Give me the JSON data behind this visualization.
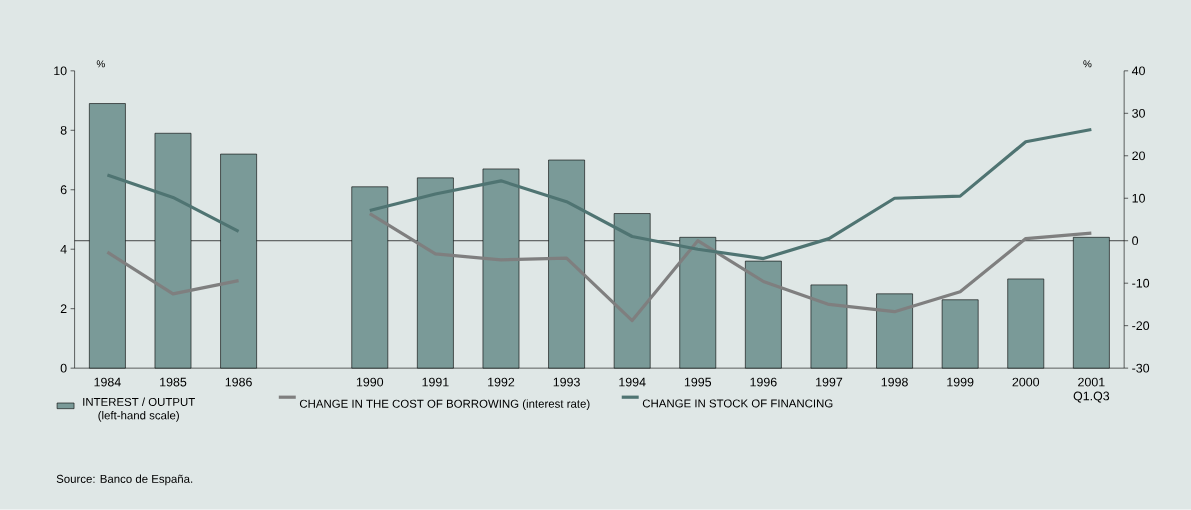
{
  "chart_data": {
    "type": "bar",
    "categories": [
      "1984",
      "1985",
      "1986",
      null,
      "1990",
      "1991",
      "1992",
      "1993",
      "1994",
      "1995",
      "1996",
      "1997",
      "1998",
      "1999",
      "2000",
      "2001 Q1.Q3"
    ],
    "series": [
      {
        "name": "INTEREST / OUTPUT (left-hand scale)",
        "color": "#7a9a98",
        "values": [
          8.9,
          7.9,
          7.2,
          null,
          6.1,
          6.4,
          6.7,
          7.0,
          5.2,
          4.4,
          3.6,
          2.8,
          2.5,
          2.3,
          3.0,
          4.4
        ]
      },
      {
        "name": "CHANGE IN THE COST OF BORROWING (interest rate)",
        "type": "line",
        "axis": "y2",
        "color": "#7f7f7f",
        "values": [
          -2.7,
          -12.5,
          -9.4,
          null,
          6.4,
          -3.1,
          -4.5,
          -4.1,
          -18.8,
          0,
          -9.6,
          -15,
          -16.7,
          -12,
          0.5,
          1.8
        ]
      },
      {
        "name": "CHANGE IN STOCK OF FINANCING",
        "type": "line",
        "axis": "y2",
        "color": "#4f7472",
        "values": [
          15.5,
          10.2,
          2.2,
          null,
          7.1,
          11,
          14.1,
          9.2,
          1,
          -2,
          -4.2,
          0.5,
          10,
          10.5,
          23.3,
          26.2
        ]
      }
    ],
    "ylabel": "%",
    "y2label": "%",
    "ylim": [
      0,
      10
    ],
    "yticks": [
      0,
      2,
      4,
      6,
      8,
      10
    ],
    "y2lim": [
      -30,
      40
    ],
    "y2ticks": [
      -30,
      -20,
      -10,
      0,
      10,
      20,
      30,
      40
    ],
    "ref_lines": [
      {
        "axis": "y2",
        "value": 0,
        "color": "#000000"
      }
    ],
    "legend": "bottom",
    "grid": false,
    "marker": "none",
    "annotations": [
      "Source: Banco de España."
    ]
  }
}
